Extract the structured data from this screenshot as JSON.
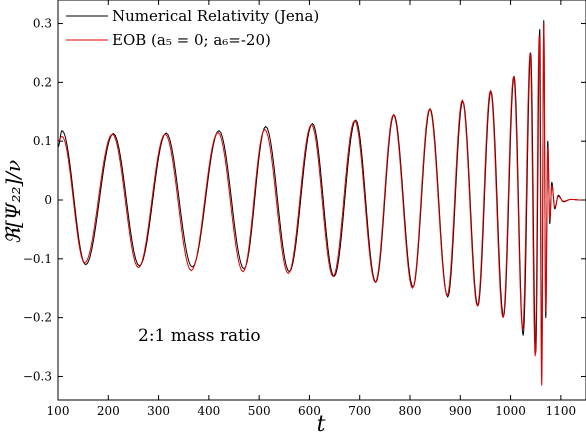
{
  "chart_data": {
    "type": "line",
    "xlabel": "t",
    "ylabel": "ℜ[Ψ₂₂]/ν",
    "xlim": [
      100,
      1150
    ],
    "ylim": [
      -0.34,
      0.34
    ],
    "xticks": [
      100,
      200,
      300,
      400,
      500,
      600,
      700,
      800,
      900,
      1000,
      1100
    ],
    "yticks": [
      -0.3,
      -0.2,
      -0.1,
      0,
      0.1,
      0.2,
      0.3
    ],
    "ytick_labels": [
      "−0.3",
      "−0.2",
      "−0.1",
      "0",
      "0.1",
      "0.2",
      "0.3"
    ],
    "grid": false,
    "legend_position": "top-left",
    "annotation": "2:1 mass ratio",
    "series": [
      {
        "name": "Numerical Relativity (Jena)",
        "color": "#000000",
        "x": [
          100,
          108,
          155,
          210,
          262,
          315,
          367,
          420,
          470,
          513,
          560,
          606,
          649,
          692,
          732,
          768,
          806,
          840,
          875,
          905,
          935,
          961,
          986,
          1007,
          1025,
          1040,
          1050,
          1058,
          1062,
          1066,
          1070,
          1074,
          1078,
          1082,
          1088,
          1095,
          1105,
          1120,
          1140
        ],
        "y": [
          0.09,
          0.118,
          -0.11,
          0.113,
          -0.112,
          0.114,
          -0.114,
          0.118,
          -0.117,
          0.125,
          -0.122,
          0.13,
          -0.13,
          0.136,
          -0.14,
          0.145,
          -0.148,
          0.155,
          -0.165,
          0.168,
          -0.18,
          0.185,
          -0.198,
          0.21,
          -0.23,
          0.25,
          -0.26,
          0.29,
          -0.3,
          0.305,
          -0.2,
          0.1,
          -0.04,
          0.03,
          -0.015,
          0.008,
          -0.003,
          0.001,
          0
        ]
      },
      {
        "name": "EOB (a₅ = 0; a₆=-20)",
        "color": "#e00000",
        "x": [
          100,
          108,
          153,
          208,
          260,
          313,
          365,
          418,
          468,
          511,
          558,
          604,
          647,
          690,
          731,
          767,
          805,
          839,
          874,
          904,
          934,
          960,
          985,
          1006,
          1024,
          1039,
          1049,
          1057,
          1062,
          1066,
          1070,
          1074,
          1078,
          1082,
          1088,
          1095,
          1105,
          1120,
          1140
        ],
        "y": [
          0.1,
          0.108,
          -0.107,
          0.112,
          -0.115,
          0.112,
          -0.12,
          0.115,
          -0.122,
          0.12,
          -0.125,
          0.128,
          -0.13,
          0.135,
          -0.14,
          0.145,
          -0.15,
          0.155,
          -0.162,
          0.17,
          -0.18,
          0.186,
          -0.2,
          0.21,
          -0.22,
          0.25,
          -0.265,
          0.28,
          -0.315,
          0.3,
          -0.19,
          0.09,
          -0.035,
          0.025,
          -0.012,
          0.006,
          -0.002,
          0.001,
          0
        ]
      }
    ]
  }
}
